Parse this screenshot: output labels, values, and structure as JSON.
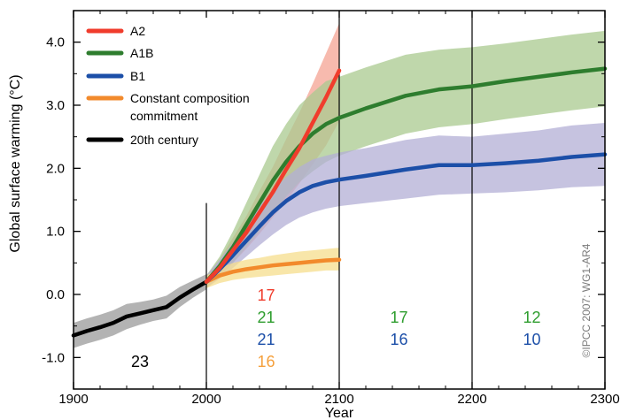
{
  "chart_data": {
    "type": "line",
    "title": "",
    "xlabel": "Year",
    "ylabel": "Global surface warming (°C)",
    "xlim": [
      1900,
      2300
    ],
    "ylim": [
      -1.5,
      4.5
    ],
    "x_ticks": [
      1900,
      2000,
      2100,
      2200,
      2300
    ],
    "x_tick_labels": [
      "1900",
      "2000",
      "2100",
      "2200",
      "2300"
    ],
    "y_ticks": [
      -1,
      0,
      1,
      2,
      3,
      4
    ],
    "y_tick_labels": [
      "-1.0",
      "0.0",
      "1.0",
      "2.0",
      "3.0",
      "4.0"
    ],
    "grid": false,
    "legend_position": "top-left",
    "series": [
      {
        "name": "A2",
        "color": "#f03c2c",
        "band_color": "#f4a393",
        "x": [
          2000,
          2010,
          2020,
          2030,
          2040,
          2050,
          2060,
          2070,
          2080,
          2090,
          2100
        ],
        "y": [
          0.2,
          0.42,
          0.7,
          0.98,
          1.3,
          1.62,
          1.98,
          2.32,
          2.72,
          3.12,
          3.55
        ],
        "band_low": [
          0.1,
          0.28,
          0.5,
          0.72,
          0.96,
          1.22,
          1.48,
          1.76,
          2.06,
          2.36,
          2.75
        ],
        "band_high": [
          0.3,
          0.56,
          0.9,
          1.24,
          1.64,
          2.02,
          2.46,
          2.88,
          3.34,
          3.82,
          4.3
        ]
      },
      {
        "name": "A1B",
        "color": "#2e7d2e",
        "band_color": "#a9c98f",
        "x": [
          2000,
          2010,
          2020,
          2030,
          2040,
          2050,
          2060,
          2070,
          2080,
          2090,
          2100,
          2120,
          2150,
          2175,
          2200,
          2225,
          2250,
          2275,
          2300
        ],
        "y": [
          0.2,
          0.45,
          0.75,
          1.1,
          1.45,
          1.8,
          2.1,
          2.35,
          2.55,
          2.7,
          2.8,
          2.95,
          3.15,
          3.25,
          3.3,
          3.38,
          3.45,
          3.52,
          3.58
        ],
        "band_low": [
          0.1,
          0.3,
          0.5,
          0.75,
          1.0,
          1.3,
          1.55,
          1.78,
          1.95,
          2.1,
          2.2,
          2.35,
          2.55,
          2.65,
          2.7,
          2.78,
          2.85,
          2.92,
          2.98
        ],
        "band_high": [
          0.3,
          0.6,
          1.0,
          1.45,
          1.9,
          2.35,
          2.7,
          3.0,
          3.2,
          3.38,
          3.45,
          3.6,
          3.8,
          3.88,
          3.92,
          3.98,
          4.05,
          4.12,
          4.18
        ]
      },
      {
        "name": "B1",
        "color": "#1c4fa8",
        "band_color": "#b3afd6",
        "x": [
          2000,
          2010,
          2020,
          2030,
          2040,
          2050,
          2060,
          2070,
          2080,
          2090,
          2100,
          2120,
          2150,
          2175,
          2200,
          2225,
          2250,
          2275,
          2300
        ],
        "y": [
          0.2,
          0.4,
          0.62,
          0.85,
          1.08,
          1.3,
          1.48,
          1.62,
          1.72,
          1.78,
          1.82,
          1.88,
          1.98,
          2.05,
          2.05,
          2.08,
          2.12,
          2.18,
          2.22
        ],
        "band_low": [
          0.1,
          0.25,
          0.42,
          0.6,
          0.78,
          0.95,
          1.1,
          1.22,
          1.3,
          1.36,
          1.4,
          1.45,
          1.52,
          1.58,
          1.6,
          1.62,
          1.65,
          1.7,
          1.72
        ],
        "band_high": [
          0.3,
          0.55,
          0.82,
          1.12,
          1.4,
          1.65,
          1.86,
          2.02,
          2.14,
          2.2,
          2.25,
          2.32,
          2.45,
          2.52,
          2.5,
          2.55,
          2.6,
          2.68,
          2.72
        ]
      },
      {
        "name": "Constant composition commitment",
        "color": "#f28a2c",
        "band_color": "#f5de8c",
        "x": [
          2000,
          2010,
          2020,
          2030,
          2040,
          2050,
          2060,
          2070,
          2080,
          2090,
          2100
        ],
        "y": [
          0.2,
          0.3,
          0.36,
          0.4,
          0.43,
          0.46,
          0.48,
          0.5,
          0.52,
          0.54,
          0.55
        ],
        "band_low": [
          0.1,
          0.18,
          0.23,
          0.26,
          0.28,
          0.3,
          0.32,
          0.34,
          0.36,
          0.38,
          0.38
        ],
        "band_high": [
          0.3,
          0.42,
          0.5,
          0.55,
          0.58,
          0.62,
          0.65,
          0.68,
          0.7,
          0.72,
          0.74
        ]
      },
      {
        "name": "20th century",
        "color": "#000000",
        "band_color": "#9a9a9a",
        "x": [
          1900,
          1910,
          1920,
          1930,
          1940,
          1950,
          1960,
          1970,
          1980,
          1990,
          2000
        ],
        "y": [
          -0.65,
          -0.58,
          -0.52,
          -0.45,
          -0.35,
          -0.3,
          -0.25,
          -0.2,
          -0.05,
          0.08,
          0.2
        ],
        "band_low": [
          -0.85,
          -0.78,
          -0.72,
          -0.65,
          -0.55,
          -0.48,
          -0.42,
          -0.38,
          -0.2,
          -0.05,
          0.08
        ],
        "band_high": [
          -0.45,
          -0.38,
          -0.32,
          -0.25,
          -0.15,
          -0.12,
          -0.08,
          -0.02,
          0.12,
          0.22,
          0.32
        ]
      }
    ],
    "annotations": [
      {
        "text": "23",
        "x": 1950,
        "y": -1.05,
        "color": "#000000"
      },
      {
        "text": "17",
        "x": 2045,
        "y": 0.0,
        "color": "#f03c2c"
      },
      {
        "text": "21",
        "x": 2045,
        "y": -0.35,
        "color": "#2e9d2e"
      },
      {
        "text": "21",
        "x": 2045,
        "y": -0.7,
        "color": "#1c4fa8"
      },
      {
        "text": "16",
        "x": 2045,
        "y": -1.05,
        "color": "#f5a03c"
      },
      {
        "text": "17",
        "x": 2145,
        "y": -0.35,
        "color": "#2e9d2e"
      },
      {
        "text": "16",
        "x": 2145,
        "y": -0.7,
        "color": "#1c4fa8"
      },
      {
        "text": "12",
        "x": 2245,
        "y": -0.35,
        "color": "#2e9d2e"
      },
      {
        "text": "10",
        "x": 2245,
        "y": -0.7,
        "color": "#1c4fa8"
      }
    ],
    "vertical_lines": [
      2000,
      2100,
      2200
    ],
    "copyright": "©IPCC 2007: WG1-AR4"
  }
}
